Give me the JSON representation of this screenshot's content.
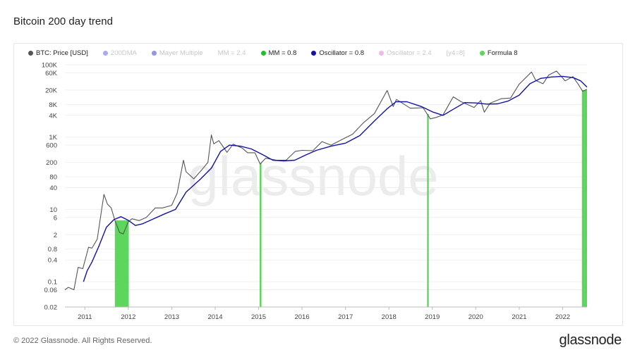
{
  "page": {
    "title": "Bitcoin 200 day trend",
    "copyright": "© 2022 Glassnode. All Rights Reserved.",
    "logo": "glassnode",
    "watermark": "glassnode"
  },
  "legend": [
    {
      "label": "BTC: Price [USD]",
      "color": "#555555",
      "active": true
    },
    {
      "label": "200DMA",
      "color": "#8c8cf0",
      "active": false
    },
    {
      "label": "Mayer Multiple",
      "color": "#7070e0",
      "active": false
    },
    {
      "label": "MM = 2.4",
      "color": null,
      "active": false
    },
    {
      "label": "MM = 0.8",
      "color": "#22c02a",
      "active": true
    },
    {
      "label": "Oscillator = 0.8",
      "color": "#1010aa",
      "active": true
    },
    {
      "label": "Oscillator = 2.4",
      "color": "#e9a0e0",
      "active": false
    },
    {
      "label": "[y4=8]",
      "color": null,
      "active": false
    },
    {
      "label": "Formula 8",
      "color": "#5cd65c",
      "active": true
    }
  ],
  "colors": {
    "price": "#555555",
    "oscillator": "#1212a8",
    "formula": "#5cd65c",
    "grid": "#efefef",
    "axis_text": "#444444"
  },
  "chart_data": {
    "type": "line",
    "title": "Bitcoin 200 day trend",
    "y_scale": "log",
    "ylim": [
      0.02,
      100000
    ],
    "xlim": [
      "2010-07-17",
      "2022-07-25"
    ],
    "y_ticks": [
      {
        "value": 100000,
        "label": "100K"
      },
      {
        "value": 60000,
        "label": "60K"
      },
      {
        "value": 20000,
        "label": "20K"
      },
      {
        "value": 8000,
        "label": "8K"
      },
      {
        "value": 4000,
        "label": "4K"
      },
      {
        "value": 1000,
        "label": "1K"
      },
      {
        "value": 600,
        "label": "600"
      },
      {
        "value": 200,
        "label": "200"
      },
      {
        "value": 80,
        "label": "80"
      },
      {
        "value": 40,
        "label": "40"
      },
      {
        "value": 10,
        "label": "10"
      },
      {
        "value": 6,
        "label": "6"
      },
      {
        "value": 2,
        "label": "2"
      },
      {
        "value": 0.8,
        "label": "0.8"
      },
      {
        "value": 0.4,
        "label": "0.4"
      },
      {
        "value": 0.1,
        "label": "0.1"
      },
      {
        "value": 0.06,
        "label": "0.06"
      },
      {
        "value": 0.02,
        "label": "0.02"
      }
    ],
    "x_ticks": [
      {
        "value": "2011-01-01",
        "label": "2011"
      },
      {
        "value": "2012-01-01",
        "label": "2012"
      },
      {
        "value": "2013-01-01",
        "label": "2013"
      },
      {
        "value": "2014-01-01",
        "label": "2014"
      },
      {
        "value": "2015-01-01",
        "label": "2015"
      },
      {
        "value": "2016-01-01",
        "label": "2016"
      },
      {
        "value": "2017-01-01",
        "label": "2017"
      },
      {
        "value": "2018-01-01",
        "label": "2018"
      },
      {
        "value": "2019-01-01",
        "label": "2019"
      },
      {
        "value": "2020-01-01",
        "label": "2020"
      },
      {
        "value": "2021-01-01",
        "label": "2021"
      },
      {
        "value": "2022-01-01",
        "label": "2022"
      }
    ],
    "grid": "horizontal",
    "legend_position": "top",
    "series": [
      {
        "name": "BTC: Price [USD]",
        "points": [
          [
            "2010-07-17",
            0.06
          ],
          [
            "2010-08-15",
            0.07
          ],
          [
            "2010-10-01",
            0.06
          ],
          [
            "2010-11-05",
            0.25
          ],
          [
            "2010-12-15",
            0.23
          ],
          [
            "2011-02-01",
            0.9
          ],
          [
            "2011-03-01",
            0.85
          ],
          [
            "2011-04-15",
            1.5
          ],
          [
            "2011-05-15",
            7
          ],
          [
            "2011-06-10",
            26
          ],
          [
            "2011-07-10",
            14
          ],
          [
            "2011-08-10",
            11
          ],
          [
            "2011-09-10",
            5
          ],
          [
            "2011-10-20",
            2.3
          ],
          [
            "2011-11-20",
            2.1
          ],
          [
            "2011-12-31",
            4.5
          ],
          [
            "2012-02-01",
            5.5
          ],
          [
            "2012-04-01",
            4.9
          ],
          [
            "2012-06-01",
            6
          ],
          [
            "2012-08-15",
            11
          ],
          [
            "2012-10-15",
            11
          ],
          [
            "2012-12-31",
            13
          ],
          [
            "2013-02-15",
            28
          ],
          [
            "2013-04-09",
            230
          ],
          [
            "2013-05-01",
            110
          ],
          [
            "2013-07-05",
            70
          ],
          [
            "2013-09-15",
            130
          ],
          [
            "2013-11-01",
            200
          ],
          [
            "2013-11-30",
            1150
          ],
          [
            "2013-12-20",
            650
          ],
          [
            "2014-02-01",
            800
          ],
          [
            "2014-04-10",
            380
          ],
          [
            "2014-06-01",
            640
          ],
          [
            "2014-08-15",
            500
          ],
          [
            "2014-10-01",
            370
          ],
          [
            "2014-12-01",
            370
          ],
          [
            "2015-01-14",
            180
          ],
          [
            "2015-03-01",
            260
          ],
          [
            "2015-06-01",
            230
          ],
          [
            "2015-08-20",
            230
          ],
          [
            "2015-11-04",
            400
          ],
          [
            "2016-01-01",
            430
          ],
          [
            "2016-04-01",
            420
          ],
          [
            "2016-06-17",
            750
          ],
          [
            "2016-09-01",
            600
          ],
          [
            "2016-12-31",
            960
          ],
          [
            "2017-03-01",
            1200
          ],
          [
            "2017-06-01",
            2500
          ],
          [
            "2017-09-01",
            4500
          ],
          [
            "2017-12-17",
            19500
          ],
          [
            "2018-02-06",
            7000
          ],
          [
            "2018-03-05",
            11000
          ],
          [
            "2018-06-30",
            6300
          ],
          [
            "2018-10-15",
            6500
          ],
          [
            "2018-12-15",
            3200
          ],
          [
            "2019-02-01",
            3500
          ],
          [
            "2019-04-01",
            4100
          ],
          [
            "2019-06-26",
            13000
          ],
          [
            "2019-09-01",
            9500
          ],
          [
            "2019-12-18",
            6600
          ],
          [
            "2020-02-12",
            10300
          ],
          [
            "2020-03-13",
            4900
          ],
          [
            "2020-05-01",
            8700
          ],
          [
            "2020-08-01",
            11500
          ],
          [
            "2020-10-20",
            12000
          ],
          [
            "2020-12-31",
            29000
          ],
          [
            "2021-04-14",
            63000
          ],
          [
            "2021-05-20",
            37000
          ],
          [
            "2021-07-20",
            30000
          ],
          [
            "2021-09-06",
            52000
          ],
          [
            "2021-11-10",
            67000
          ],
          [
            "2022-01-22",
            36000
          ],
          [
            "2022-03-28",
            47000
          ],
          [
            "2022-05-12",
            29000
          ],
          [
            "2022-06-18",
            18500
          ],
          [
            "2022-07-25",
            21000
          ]
        ]
      },
      {
        "name": "Oscillator = 0.8",
        "points": [
          [
            "2010-12-20",
            0.1
          ],
          [
            "2011-01-20",
            0.2
          ],
          [
            "2011-03-01",
            0.35
          ],
          [
            "2011-05-01",
            1.0
          ],
          [
            "2011-07-01",
            3.2
          ],
          [
            "2011-09-01",
            5.2
          ],
          [
            "2011-11-01",
            6.3
          ],
          [
            "2012-01-01",
            5.0
          ],
          [
            "2012-03-01",
            3.6
          ],
          [
            "2012-05-01",
            4.0
          ],
          [
            "2012-08-01",
            5.5
          ],
          [
            "2012-11-01",
            7.5
          ],
          [
            "2013-02-01",
            10
          ],
          [
            "2013-05-01",
            30
          ],
          [
            "2013-09-01",
            70
          ],
          [
            "2013-12-01",
            140
          ],
          [
            "2014-02-15",
            400
          ],
          [
            "2014-05-01",
            600
          ],
          [
            "2014-08-01",
            560
          ],
          [
            "2014-11-01",
            470
          ],
          [
            "2015-02-01",
            330
          ],
          [
            "2015-05-01",
            230
          ],
          [
            "2015-08-01",
            220
          ],
          [
            "2015-11-01",
            230
          ],
          [
            "2016-02-01",
            320
          ],
          [
            "2016-05-01",
            430
          ],
          [
            "2016-09-01",
            560
          ],
          [
            "2017-01-01",
            680
          ],
          [
            "2017-05-01",
            1100
          ],
          [
            "2017-09-01",
            2800
          ],
          [
            "2017-12-15",
            6000
          ],
          [
            "2018-03-01",
            9500
          ],
          [
            "2018-06-01",
            9500
          ],
          [
            "2018-10-01",
            7000
          ],
          [
            "2019-01-01",
            5000
          ],
          [
            "2019-04-01",
            4000
          ],
          [
            "2019-07-01",
            6000
          ],
          [
            "2019-10-01",
            9000
          ],
          [
            "2020-01-01",
            8800
          ],
          [
            "2020-04-01",
            8200
          ],
          [
            "2020-07-01",
            8300
          ],
          [
            "2020-10-01",
            10000
          ],
          [
            "2021-01-01",
            14500
          ],
          [
            "2021-04-01",
            30000
          ],
          [
            "2021-07-01",
            42000
          ],
          [
            "2021-10-01",
            46000
          ],
          [
            "2022-01-01",
            48000
          ],
          [
            "2022-04-01",
            44000
          ],
          [
            "2022-06-01",
            36000
          ],
          [
            "2022-07-25",
            24000
          ]
        ]
      }
    ],
    "formula_periods": [
      [
        "2011-09-10",
        "2012-01-05"
      ],
      [
        "2015-01-10",
        "2015-01-25"
      ],
      [
        "2018-11-18",
        "2018-12-02"
      ],
      [
        "2022-06-12",
        "2022-07-25"
      ]
    ]
  }
}
